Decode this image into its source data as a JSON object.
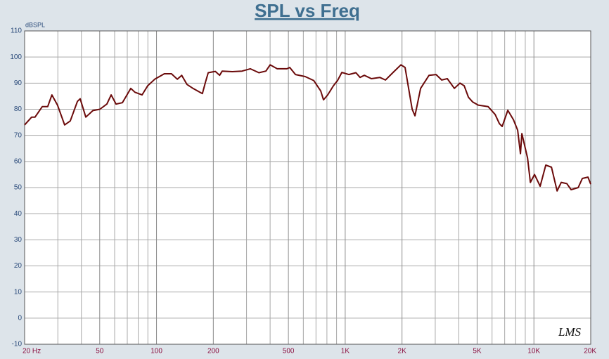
{
  "chart_data": {
    "type": "line",
    "title": "SPL vs Freq",
    "ylabel": "dBSPL",
    "annotation": "LMS",
    "xscale": "log",
    "grid": true,
    "color": "#6b0a0a",
    "x": [
      20,
      21.8,
      22.7,
      24.8,
      26.5,
      27.9,
      29.9,
      32.6,
      34.9,
      38.1,
      39.4,
      42.2,
      46.0,
      50.1,
      54.6,
      57.5,
      61.0,
      65.9,
      73.1,
      76.9,
      83.8,
      89.8,
      97.8,
      110,
      120,
      129,
      136,
      145,
      156,
      175,
      182,
      188,
      205,
      216,
      223,
      252,
      284,
      314,
      349,
      380,
      400,
      436,
      491,
      508,
      545,
      614,
      681,
      742,
      767,
      808,
      866,
      911,
      960,
      1045,
      1139,
      1199,
      1263,
      1376,
      1525,
      1634,
      1811,
      1973,
      2076,
      2263,
      2342,
      2509,
      2781,
      3031,
      3246,
      3478,
      3788,
      4057,
      4271,
      4498,
      4734,
      5071,
      5719,
      6232,
      6559,
      6789,
      7271,
      7789,
      8201,
      8488,
      8635,
      9252,
      9575,
      10077,
      10795,
      11561,
      12388,
      13265,
      13965,
      14952,
      15741,
      17160,
      18066,
      19348,
      20000
    ],
    "values": [
      74,
      77,
      77,
      81,
      81,
      85.5,
      81.5,
      74,
      75.5,
      83,
      84,
      77,
      79.5,
      80,
      82,
      85.5,
      82,
      82.5,
      88,
      86.5,
      85.5,
      89,
      91.5,
      93.6,
      93.6,
      91.5,
      93,
      89.5,
      88,
      86,
      90.5,
      94,
      94.5,
      93,
      94.6,
      94.4,
      94.6,
      95.5,
      94,
      94.6,
      97,
      95.5,
      95.5,
      96,
      93.3,
      92.5,
      91,
      87,
      83.6,
      85.5,
      89,
      91,
      94.1,
      93.3,
      94,
      92.2,
      93,
      91.7,
      92.2,
      91.2,
      94.4,
      97,
      96,
      80,
      77.5,
      88,
      93,
      93.3,
      91.2,
      91.7,
      88,
      90,
      89,
      84.6,
      82.8,
      81.6,
      81,
      78,
      74.5,
      73.4,
      79.6,
      76,
      72,
      63,
      70.7,
      61.3,
      52,
      55,
      50.5,
      58.6,
      57.8,
      48.7,
      52,
      51.5,
      49.2,
      50,
      53.5,
      54,
      51.3
    ],
    "xlim": [
      20,
      20000
    ],
    "xticks": [
      {
        "value": 20,
        "label": "20  Hz"
      },
      50,
      100,
      200,
      500,
      {
        "value": 1000,
        "label": "1K"
      },
      {
        "value": 2000,
        "label": "2K"
      },
      {
        "value": 5000,
        "label": "5K"
      },
      {
        "value": 10000,
        "label": "10K"
      },
      {
        "value": 20000,
        "label": "20K"
      }
    ],
    "xminor": [
      30,
      40,
      60,
      70,
      80,
      90,
      300,
      400,
      600,
      700,
      800,
      900,
      3000,
      4000,
      6000,
      7000,
      8000,
      9000
    ],
    "ylim": [
      -10,
      110
    ],
    "yticks": [
      -10,
      0,
      10,
      20,
      30,
      40,
      50,
      60,
      70,
      80,
      90,
      100,
      110
    ]
  }
}
